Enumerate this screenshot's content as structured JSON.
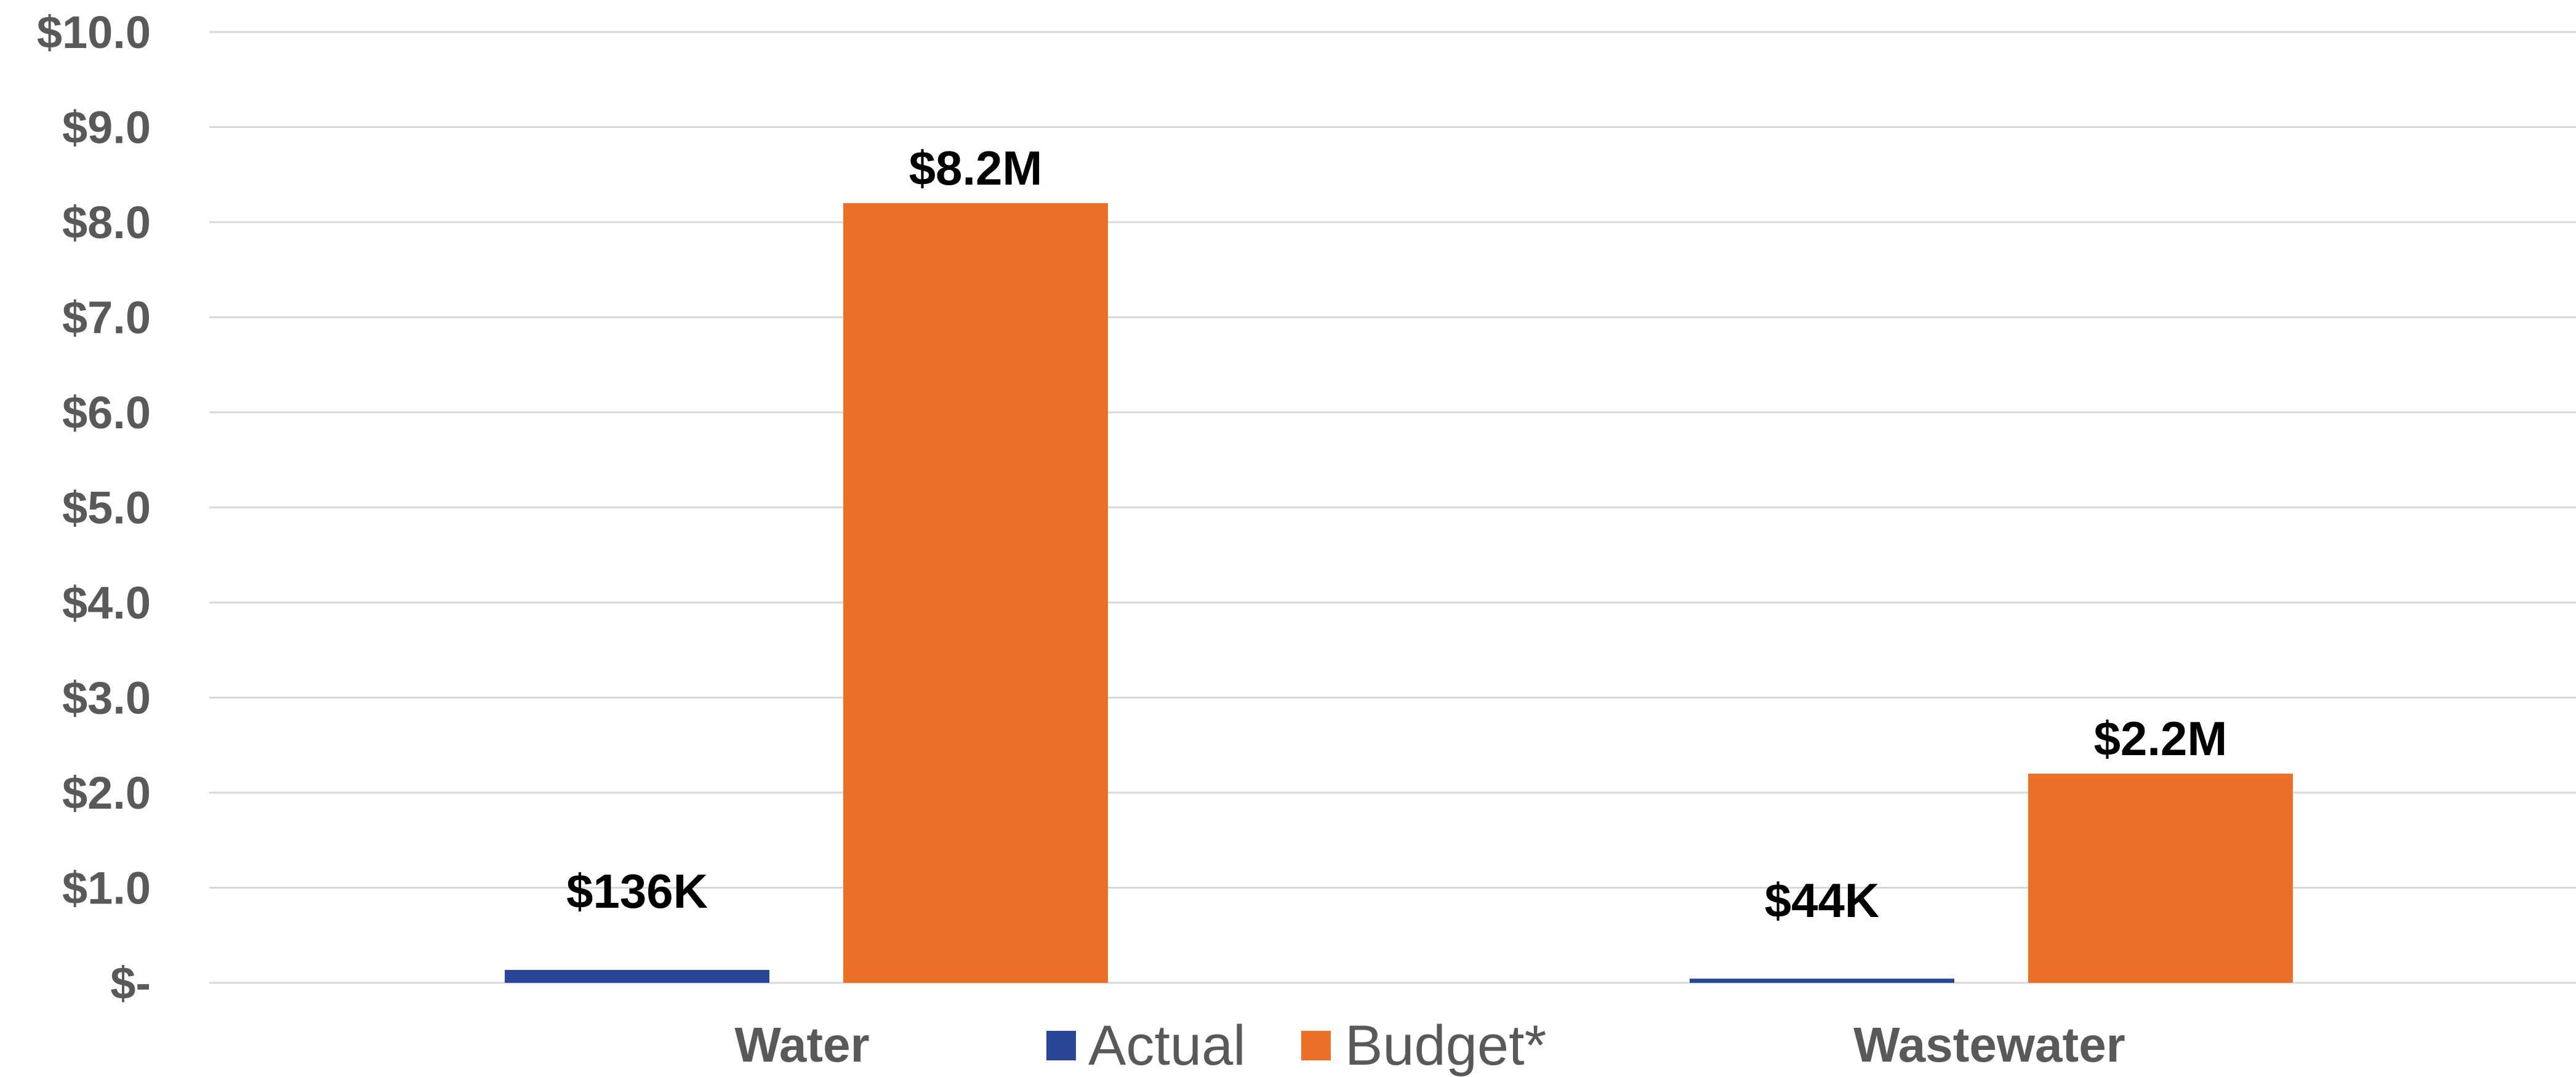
{
  "chart_data": {
    "type": "bar",
    "title": "",
    "xlabel": "",
    "ylabel": "",
    "categories": [
      "Water",
      "Wastewater"
    ],
    "series": [
      {
        "name": "Actual",
        "color": "#2b4597",
        "values": [
          0.136,
          0.044
        ],
        "labels": [
          "$136K",
          "$44K"
        ]
      },
      {
        "name": "Budget*",
        "color": "#eb6f26",
        "values": [
          8.2,
          2.2
        ],
        "labels": [
          "$8.2M",
          "$2.2M"
        ]
      }
    ],
    "ylim": [
      0,
      10
    ],
    "yticks": [
      0,
      1,
      2,
      3,
      4,
      5,
      6,
      7,
      8,
      9,
      10
    ],
    "ytick_labels": [
      "$-",
      "$1.0",
      "$2.0",
      "$3.0",
      "$4.0",
      "$5.0",
      "$6.0",
      "$7.0",
      "$8.0",
      "$9.0",
      "$10.0"
    ],
    "grid": true,
    "legend_position": "bottom-center"
  }
}
